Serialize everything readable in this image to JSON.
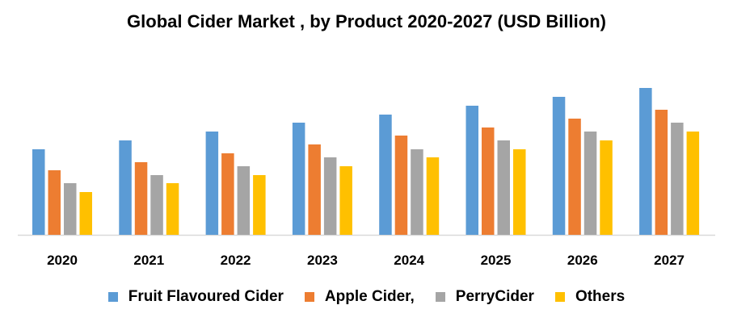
{
  "chart_data": {
    "type": "bar",
    "title": "Global Cider Market , by Product 2020-2027 (USD Billion)",
    "xlabel": "",
    "ylabel": "",
    "categories": [
      "2020",
      "2021",
      "2022",
      "2023",
      "2024",
      "2025",
      "2026",
      "2027"
    ],
    "series": [
      {
        "name": "Fruit Flavoured Cider",
        "color": "#5B9BD5",
        "values": [
          106,
          117,
          128,
          139,
          149,
          160,
          171,
          182
        ]
      },
      {
        "name": "Apple Cider,",
        "color": "#ED7D31",
        "values": [
          80,
          90,
          101,
          112,
          123,
          133,
          144,
          155
        ]
      },
      {
        "name": "PerryCider",
        "color": "#A5A5A5",
        "values": [
          64,
          74,
          85,
          96,
          106,
          117,
          128,
          139
        ]
      },
      {
        "name": "Others",
        "color": "#FFC000",
        "values": [
          53,
          64,
          74,
          85,
          96,
          106,
          117,
          128
        ]
      }
    ],
    "ylim": [
      0,
      190
    ],
    "grid": false,
    "y_axis_shown": false,
    "legend": "bottom"
  }
}
